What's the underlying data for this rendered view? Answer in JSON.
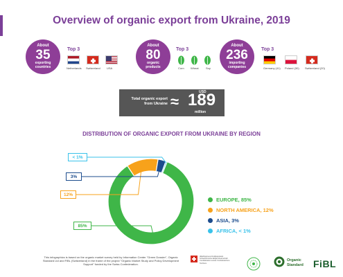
{
  "title": "Overview of organic export from Ukraine, 2019",
  "stats": [
    {
      "about": "About",
      "number": "35",
      "caption_line1": "exporting",
      "caption_line2": "countries",
      "color": "#8e3e97"
    },
    {
      "about": "About",
      "number": "80",
      "caption_line1": "organic",
      "caption_line2": "products",
      "color": "#8e3e97"
    },
    {
      "about": "About",
      "number": "236",
      "caption_line1": "importing",
      "caption_line2": "companies",
      "color": "#8e3e97"
    }
  ],
  "top3_label": "Top 3",
  "top3_countries": [
    "Netherlands",
    "Switzerland",
    "USA"
  ],
  "top3_products": [
    "Corn",
    "Wheat",
    "Soy"
  ],
  "top3_companies": [
    "Germany (41)",
    "Poland (30)",
    "Switzerland (20)"
  ],
  "total": {
    "label_line1": "Total organic export",
    "label_line2": "from Ukraine",
    "approx": "≈",
    "currency": "USD",
    "amount": "189",
    "unit": "million"
  },
  "chart_data": {
    "type": "pie",
    "title": "DISTRIBUTION OF ORGANIC EXPORT FROM UKRAINE BY REGION",
    "categories": [
      "EUROPE",
      "NORTH AMERICA",
      "ASIA",
      "AFRICA"
    ],
    "values": [
      85,
      12,
      3,
      0.5
    ],
    "value_labels": [
      "85%",
      "12%",
      "3%",
      "< 1%"
    ],
    "legend_labels": [
      "EUROPE, 85%",
      "NORTH AMERICA, 12%",
      "ASIA, 3%",
      "AFRICA, < 1%"
    ],
    "colors": [
      "#3fb648",
      "#f7a21b",
      "#1c4c8d",
      "#39c2ea"
    ],
    "legend_position": "right"
  },
  "footnote": "This infographics is based on the organic market survey held by Information Center \"Green Dossier\", Organic Standard Ltd and FiBL (Switzerland) in the frame of the project \"Organic Market Study and Policy Development Support\" funded by the Swiss Confederation.",
  "logo_ch_text": "Швейцарська Конфедерація Schweizerische Eidgenossenschaft Confédération suisse Confederazione Svizzera",
  "logo_os": "Organic Standard",
  "logo_fibl": "FiBL"
}
